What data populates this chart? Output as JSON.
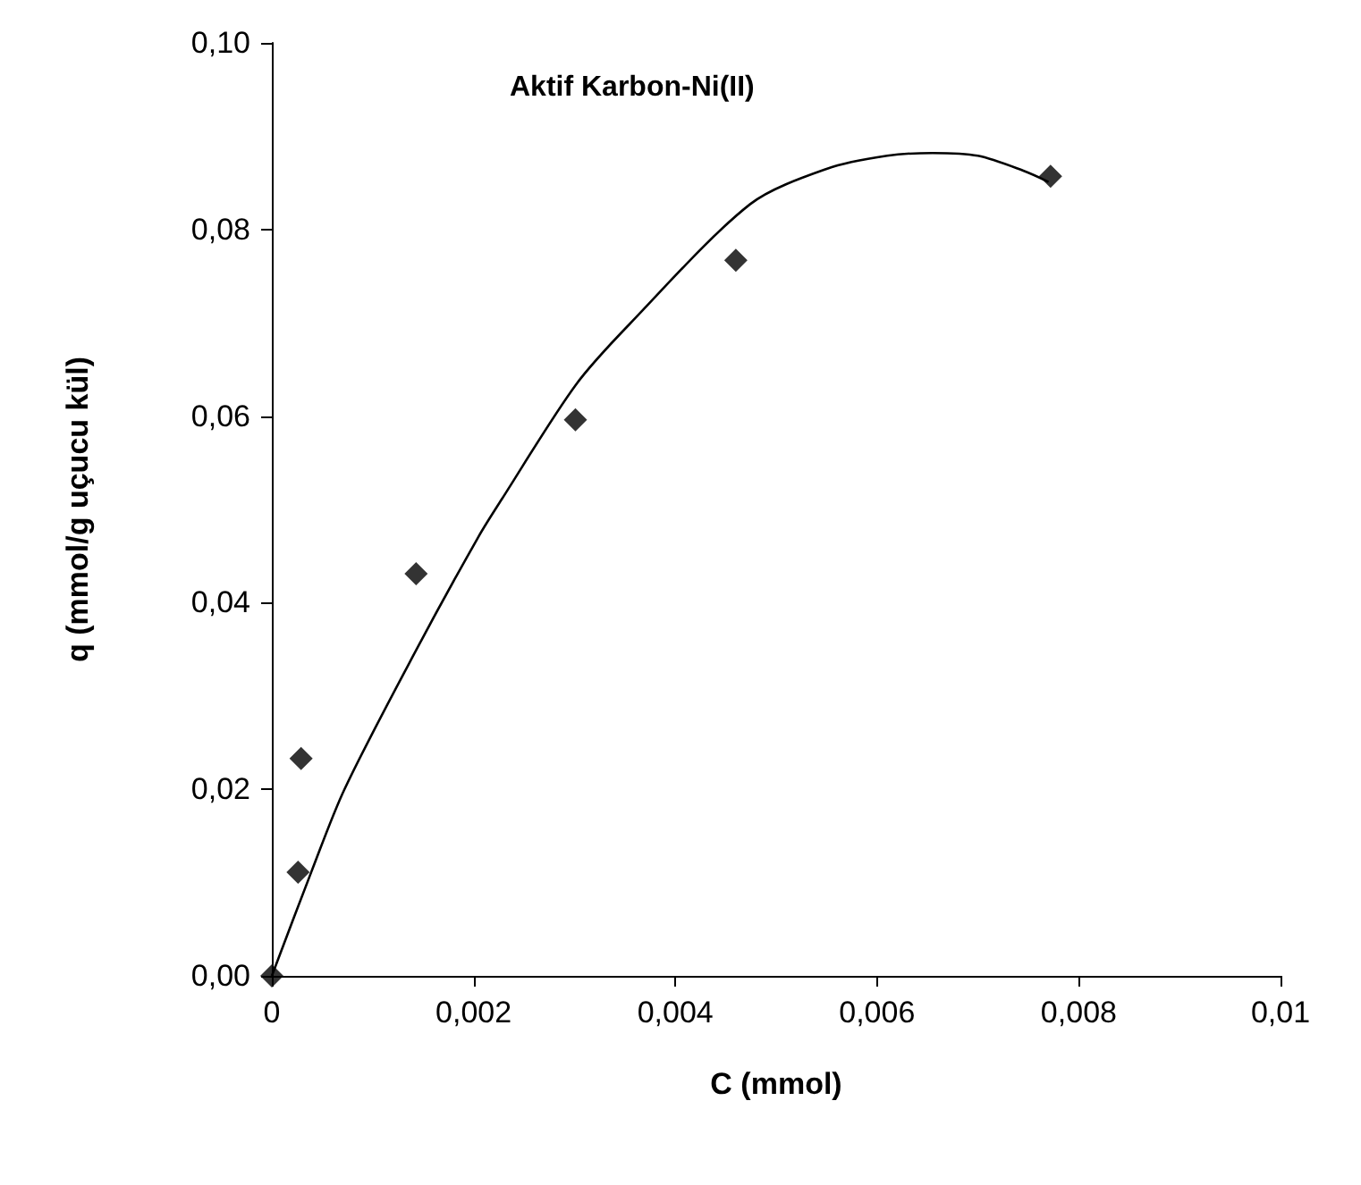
{
  "chart_data": {
    "type": "scatter",
    "title": "Aktif Karbon-Ni(II)",
    "xlabel": "C (mmol)",
    "ylabel": "q (mmol/g uçucu kül)",
    "xlim": [
      0,
      0.01
    ],
    "xticks": [
      0,
      {
        "value": 0.002,
        "label": "0,002"
      },
      {
        "value": 0.004,
        "label": "0,004"
      },
      {
        "value": 0.006,
        "label": "0,006"
      },
      {
        "value": 0.008,
        "label": "0,008"
      },
      {
        "value": 0.01,
        "label": "0,01"
      }
    ],
    "ylim": [
      0,
      0.1
    ],
    "yticks": [
      {
        "value": 0,
        "label": "0,00"
      },
      {
        "value": 0.02,
        "label": "0,02"
      },
      {
        "value": 0.04,
        "label": "0,04"
      },
      {
        "value": 0.06,
        "label": "0,06"
      },
      {
        "value": 0.08,
        "label": "0,08"
      },
      {
        "value": 0.1,
        "label": "0,10"
      }
    ],
    "grid": false,
    "marker": "diamond",
    "series": [
      {
        "color": "#000000",
        "x": [
          0,
          0.00026,
          0.00029,
          0.00143,
          0.00301,
          0.0046,
          0.00772
        ],
        "values": [
          0,
          0.0111,
          0.0233,
          0.0431,
          0.0596,
          0.0767,
          0.0857
        ]
      },
      {
        "type": "line",
        "color": "#000000",
        "line_style": "solid",
        "marker": "none",
        "x": [
          0,
          0.00039,
          0.00072,
          0.00143,
          0.00205,
          0.00228,
          0.00301,
          0.00355,
          0.00474,
          0.0055,
          0.0061,
          0.00655,
          0.007,
          0.00745,
          0.0077
        ],
        "values": [
          0,
          0.0111,
          0.02,
          0.0349,
          0.0471,
          0.0511,
          0.0633,
          0.0699,
          0.0827,
          0.0865,
          0.0879,
          0.0882,
          0.0879,
          0.0863,
          0.0851
        ]
      }
    ]
  }
}
